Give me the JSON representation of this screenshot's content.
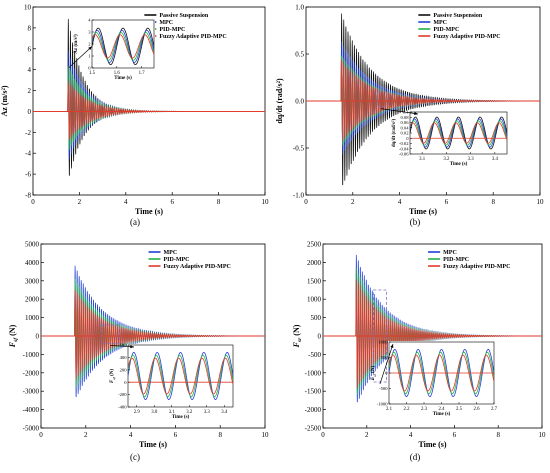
{
  "colors": {
    "passive": "#111111",
    "mpc": "#1f3fd6",
    "pid_mpc": "#22b04a",
    "fuzzy": "#e03a2a",
    "zero_line": "#e03a2a",
    "inset_box": "#7b72c8"
  },
  "chart_data": [
    {
      "id": "a",
      "panel_label": "(a)",
      "type": "line",
      "xlabel": "Time (s)",
      "ylabel": "Az (m/s²)",
      "xlim": [
        0,
        10
      ],
      "ylim": [
        -8,
        10
      ],
      "xticks": [
        0,
        2,
        4,
        6,
        8,
        10
      ],
      "yticks": [
        -8,
        -6,
        -4,
        -2,
        0,
        2,
        4,
        6,
        8,
        10
      ],
      "legend_position": "top-right",
      "series": [
        {
          "name": "Passive Suspension",
          "color_key": "passive",
          "peak": 9.2,
          "trough": -7.0,
          "start": 1.5,
          "decay_end": 3.6
        },
        {
          "name": "MPC",
          "color_key": "mpc",
          "peak": 6.0,
          "trough": -5.0,
          "start": 1.5,
          "decay_end": 4.0
        },
        {
          "name": "PID-MPC",
          "color_key": "pid_mpc",
          "peak": 4.5,
          "trough": -4.0,
          "start": 1.5,
          "decay_end": 4.2
        },
        {
          "name": "Fuzzy Adaptive PID-MPC",
          "color_key": "fuzzy",
          "peak": 3.0,
          "trough": -3.0,
          "start": 1.5,
          "decay_end": 4.4
        }
      ],
      "inset": {
        "ylabel": "Az (m/s²)",
        "xlabel": "Time (s)",
        "xlim": [
          1.5,
          1.75
        ],
        "ylim": [
          0,
          4
        ],
        "xticks": [
          1.5,
          1.6,
          1.7
        ],
        "yticks": [
          0,
          1,
          2,
          3,
          4
        ]
      }
    },
    {
      "id": "b",
      "panel_label": "(b)",
      "type": "line",
      "xlabel": "Time (s)",
      "ylabel": "dq/dt (rad/s²)",
      "xlim": [
        0,
        10
      ],
      "ylim": [
        -1.0,
        1.0
      ],
      "xticks": [
        0,
        2,
        4,
        6,
        8,
        10
      ],
      "yticks": [
        -1.0,
        -0.5,
        0.0,
        0.5,
        1.0
      ],
      "legend_position": "top-right",
      "series": [
        {
          "name": "Passive Suspension",
          "color_key": "passive",
          "peak": 0.95,
          "trough": -0.97,
          "start": 1.5,
          "decay_end": 5.5
        },
        {
          "name": "MPC",
          "color_key": "mpc",
          "peak": 0.65,
          "trough": -0.6,
          "start": 1.5,
          "decay_end": 5.5
        },
        {
          "name": "PID-MPC",
          "color_key": "pid_mpc",
          "peak": 0.5,
          "trough": -0.5,
          "start": 1.5,
          "decay_end": 5.5
        },
        {
          "name": "Fuzzy Adaptive PID-MPC",
          "color_key": "fuzzy",
          "peak": 0.45,
          "trough": -0.45,
          "start": 1.5,
          "decay_end": 5.5
        }
      ],
      "inset": {
        "ylabel": "dq/dt (rad/s²)",
        "xlabel": "Time (s)",
        "xlim": [
          3.05,
          3.45
        ],
        "ylim": [
          -0.06,
          0.1
        ],
        "xticks": [
          3.1,
          3.2,
          3.3,
          3.4
        ],
        "yticks": [
          -0.06,
          -0.04,
          -0.02,
          0.0,
          0.02,
          0.04,
          0.06,
          0.08,
          0.1
        ]
      }
    },
    {
      "id": "c",
      "panel_label": "(c)",
      "type": "line",
      "xlabel": "Time (s)",
      "ylabel": "F_sf (N)",
      "xlim": [
        0,
        10
      ],
      "ylim": [
        -5000,
        5000
      ],
      "xticks": [
        0,
        2,
        4,
        6,
        8,
        10
      ],
      "yticks": [
        -5000,
        -4000,
        -3000,
        -2000,
        -1000,
        0,
        1000,
        2000,
        3000,
        4000,
        5000
      ],
      "legend_position": "top-right",
      "series": [
        {
          "name": "MPC",
          "color_key": "mpc",
          "peak": 3900,
          "trough": -3600,
          "start": 1.5,
          "decay_end": 5.5
        },
        {
          "name": "PID-MPC",
          "color_key": "pid_mpc",
          "peak": 3200,
          "trough": -3000,
          "start": 1.5,
          "decay_end": 5.5
        },
        {
          "name": "Fuzzy Adaptive PID-MPC",
          "color_key": "fuzzy",
          "peak": 2600,
          "trough": -2500,
          "start": 1.5,
          "decay_end": 5.5
        }
      ],
      "inset": {
        "ylabel": "F_sf (N)",
        "xlabel": "Time (s)",
        "xlim": [
          2.85,
          3.45
        ],
        "ylim": [
          -400,
          600
        ],
        "xticks": [
          2.9,
          3.0,
          3.1,
          3.2,
          3.3,
          3.4
        ],
        "tick_labels": [
          "2.9",
          "3.0",
          "3.1",
          "3.2",
          "3.3",
          "3.4"
        ],
        "yticks": [
          -400,
          -200,
          0,
          200,
          400,
          600
        ]
      }
    },
    {
      "id": "d",
      "panel_label": "(d)",
      "type": "line",
      "xlabel": "Time (s)",
      "ylabel": "F_sr (N)",
      "xlim": [
        0,
        10
      ],
      "ylim": [
        -2500,
        2500
      ],
      "xticks": [
        0,
        2,
        4,
        6,
        8,
        10
      ],
      "yticks": [
        -2500,
        -2000,
        -1500,
        -1000,
        -500,
        0,
        500,
        1000,
        1500,
        2000,
        2500
      ],
      "legend_position": "top-right",
      "series": [
        {
          "name": "MPC",
          "color_key": "mpc",
          "peak": 2250,
          "trough": -1950,
          "start": 1.5,
          "decay_end": 5.5
        },
        {
          "name": "PID-MPC",
          "color_key": "pid_mpc",
          "peak": 1900,
          "trough": -1700,
          "start": 1.5,
          "decay_end": 5.5
        },
        {
          "name": "Fuzzy Adaptive PID-MPC",
          "color_key": "fuzzy",
          "peak": 1600,
          "trough": -1500,
          "start": 1.5,
          "decay_end": 5.5
        }
      ],
      "inset": {
        "ylabel": "F_sr (N)",
        "xlabel": "Time (s)",
        "xlim": [
          2.1,
          2.7
        ],
        "ylim": [
          -1000,
          1000
        ],
        "xticks": [
          2.1,
          2.2,
          2.3,
          2.4,
          2.5,
          2.6,
          2.7
        ],
        "yticks": [
          -1000,
          -500,
          0,
          500,
          1000
        ]
      }
    }
  ]
}
